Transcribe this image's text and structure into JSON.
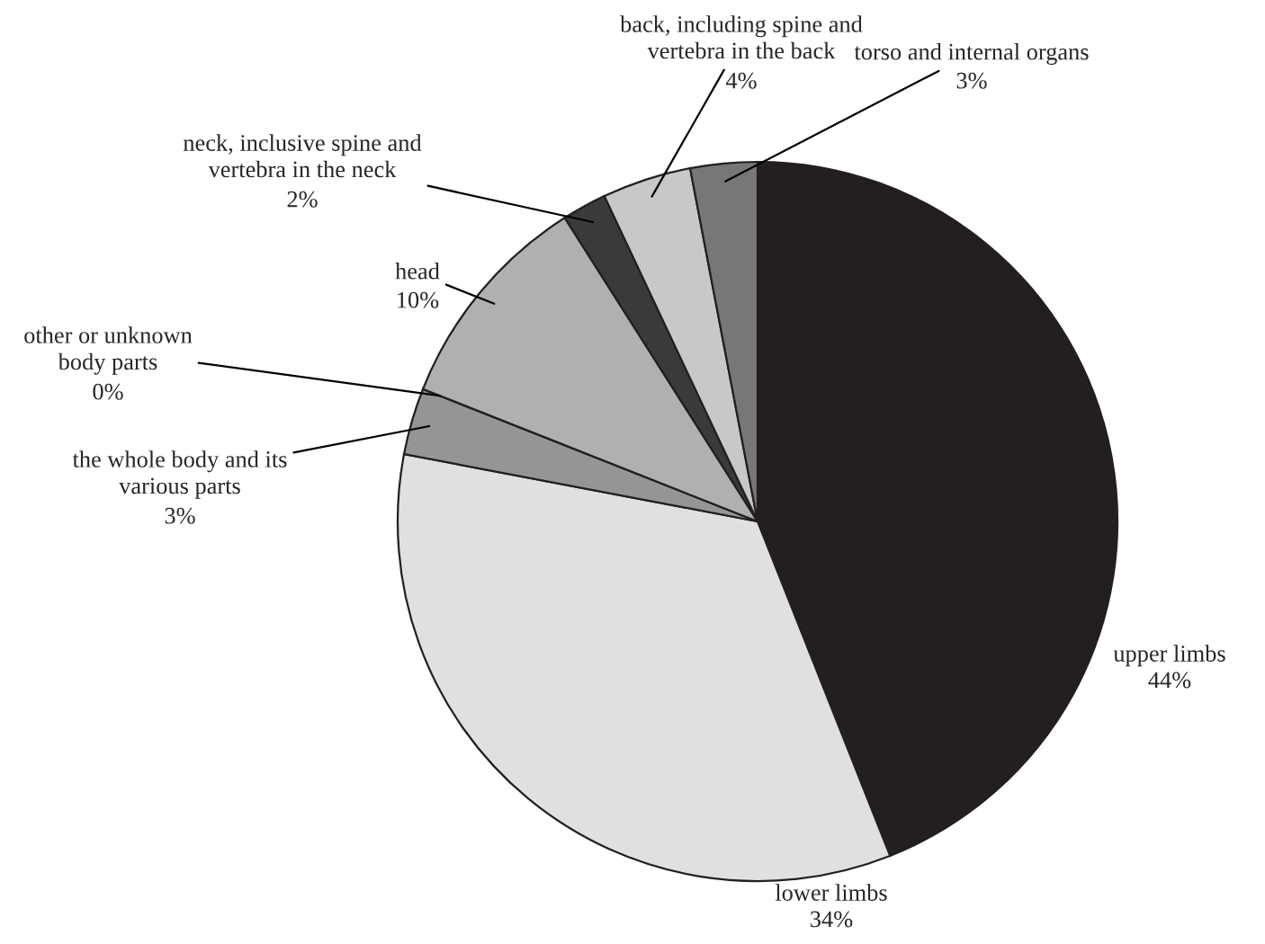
{
  "chart_data": {
    "type": "pie",
    "categories": [
      "upper limbs",
      "lower limbs",
      "the whole body and its\nvarious parts",
      "other or unknown\nbody parts",
      "head",
      "neck, inclusive spine and\nvertebra in the neck",
      "back, including spine and\nvertebra in the back",
      "torso and internal organs"
    ],
    "values": [
      44,
      34,
      3,
      0,
      10,
      2,
      4,
      3
    ],
    "value_labels": [
      "44%",
      "34%",
      "3%",
      "0%",
      "10%",
      "2%",
      "4%",
      "3%"
    ],
    "colors": [
      "#231f20",
      "#e0e0e2",
      "#959597",
      "#ffffff",
      "#b0b0b2",
      "#3a3a3c",
      "#c8c8ca",
      "#77777a"
    ]
  }
}
